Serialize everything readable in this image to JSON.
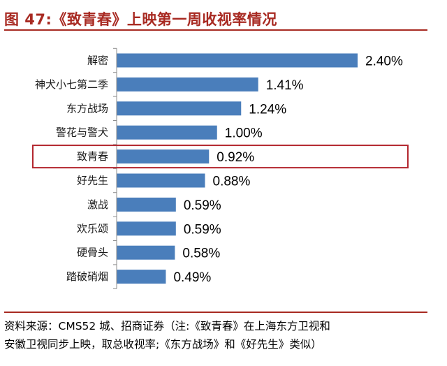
{
  "figure": {
    "title": "图 47:《致青春》上映第一周收视率情况",
    "source_line1": "资料来源：CMS52 城、招商证券（注:《致青春》在上海东方卫视和",
    "source_line2": "安徽卫视同步上映，取总收视率;《东方战场》和《好先生》类似）"
  },
  "colors": {
    "bar": "#4a7ebb",
    "accent": "#a82a22",
    "highlight_box": "#b3262e"
  },
  "chart_data": {
    "type": "bar",
    "orientation": "horizontal",
    "categories": [
      "解密",
      "神犬小七第二季",
      "东方战场",
      "警花与警犬",
      "致青春",
      "好先生",
      "激战",
      "欢乐颂",
      "硬骨头",
      "踏破硝烟"
    ],
    "values": [
      2.4,
      1.41,
      1.24,
      1.0,
      0.92,
      0.88,
      0.59,
      0.59,
      0.58,
      0.49
    ],
    "value_labels": [
      "2.40%",
      "1.41%",
      "1.24%",
      "1.00%",
      "0.92%",
      "0.88%",
      "0.59%",
      "0.59%",
      "0.58%",
      "0.49%"
    ],
    "unit": "%",
    "highlighted_category": "致青春",
    "xlim": [
      0,
      2.4
    ],
    "grid": false,
    "legend": "none"
  }
}
